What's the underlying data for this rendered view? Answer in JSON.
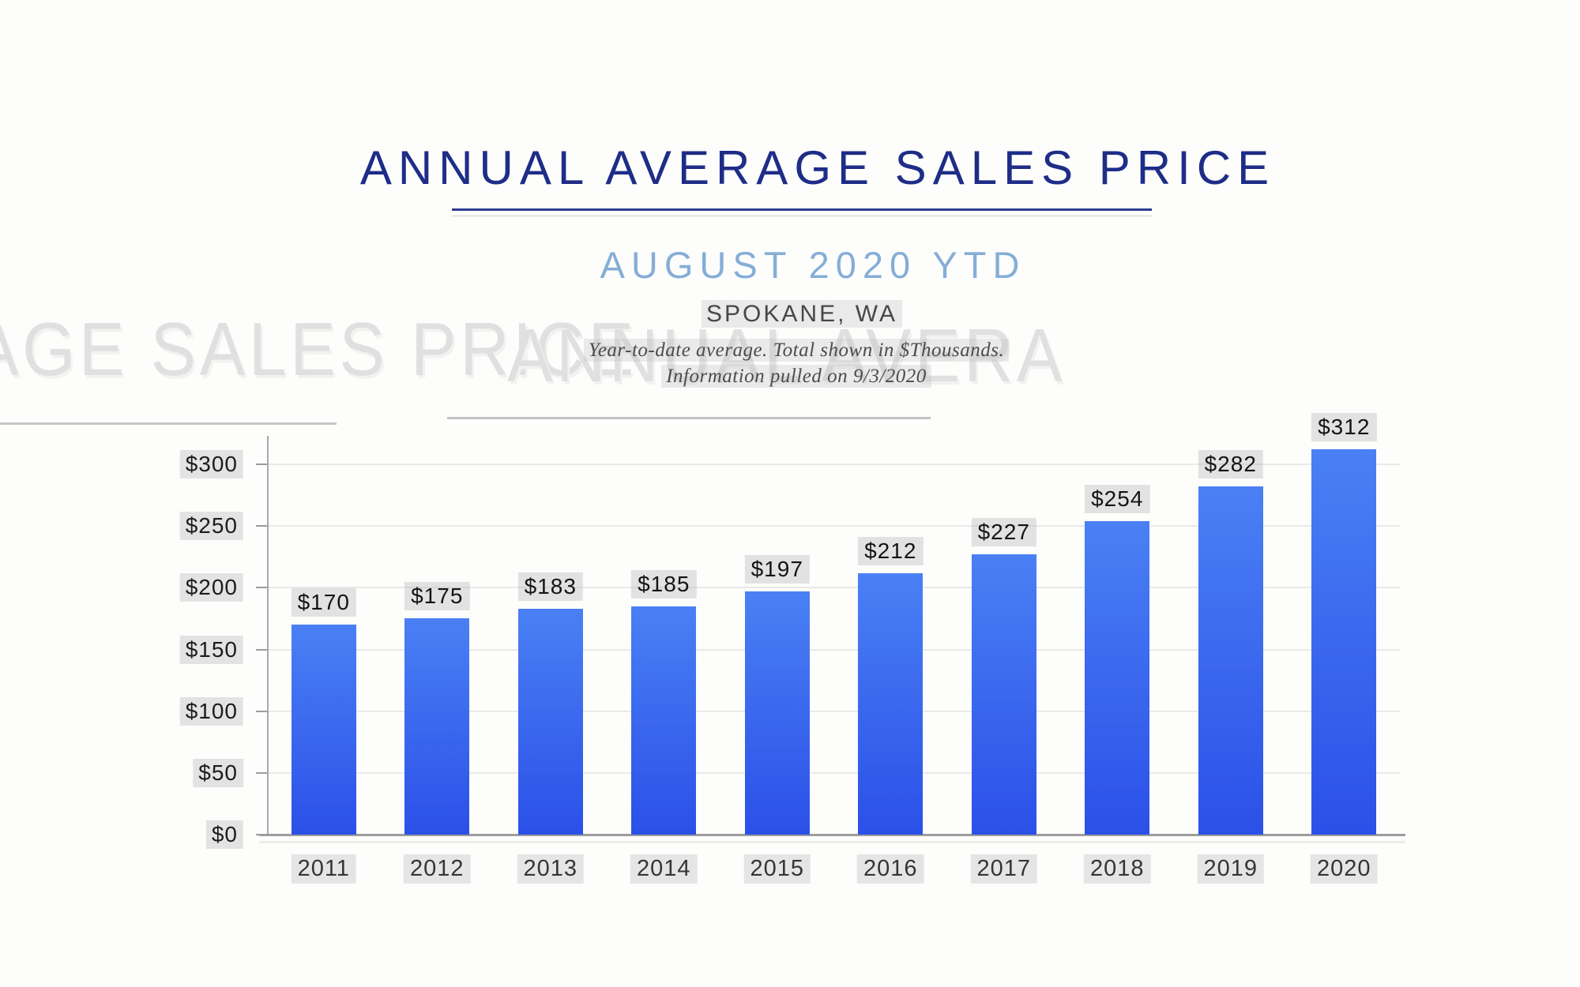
{
  "page": {
    "background": "#fdfdfc"
  },
  "header": {
    "title": "ANNUAL AVERAGE SALES PRICE",
    "title_color": "#1e2d87",
    "underline_color": "#2c3d92",
    "subtitle": "AUGUST 2020 YTD",
    "subtitle_color": "#85aed7",
    "location": "SPOKANE, WA",
    "note_line1": "Year-to-date average.  Total shown in $Thousands.",
    "note_line2": "Information pulled on 9/3/2020"
  },
  "watermark": {
    "fragment_left": "AGE SALES PRICE",
    "fragment_right": "ANNUAL AVERA",
    "color": "#e0e0e0"
  },
  "chart_data": {
    "type": "bar",
    "title": "ANNUAL AVERAGE SALES PRICE",
    "subtitle": "AUGUST 2020 YTD",
    "region": "SPOKANE, WA",
    "units": "$Thousands",
    "categories": [
      "2011",
      "2012",
      "2013",
      "2014",
      "2015",
      "2016",
      "2017",
      "2018",
      "2019",
      "2020"
    ],
    "values": [
      170,
      175,
      183,
      185,
      197,
      212,
      227,
      254,
      282,
      312
    ],
    "value_labels": [
      "$170",
      "$175",
      "$183",
      "$185",
      "$197",
      "$212",
      "$227",
      "$254",
      "$282",
      "$312"
    ],
    "y_ticks": [
      0,
      50,
      100,
      150,
      200,
      250,
      300
    ],
    "y_tick_labels": [
      "$0",
      "$50",
      "$100",
      "$150",
      "$200",
      "$250",
      "$300"
    ],
    "ylim": [
      0,
      300
    ],
    "grid": true,
    "legend": "none",
    "xlabel": "",
    "ylabel": "",
    "bar_gradient_top": "#4a80f4",
    "bar_gradient_bottom": "#2b50e8"
  }
}
